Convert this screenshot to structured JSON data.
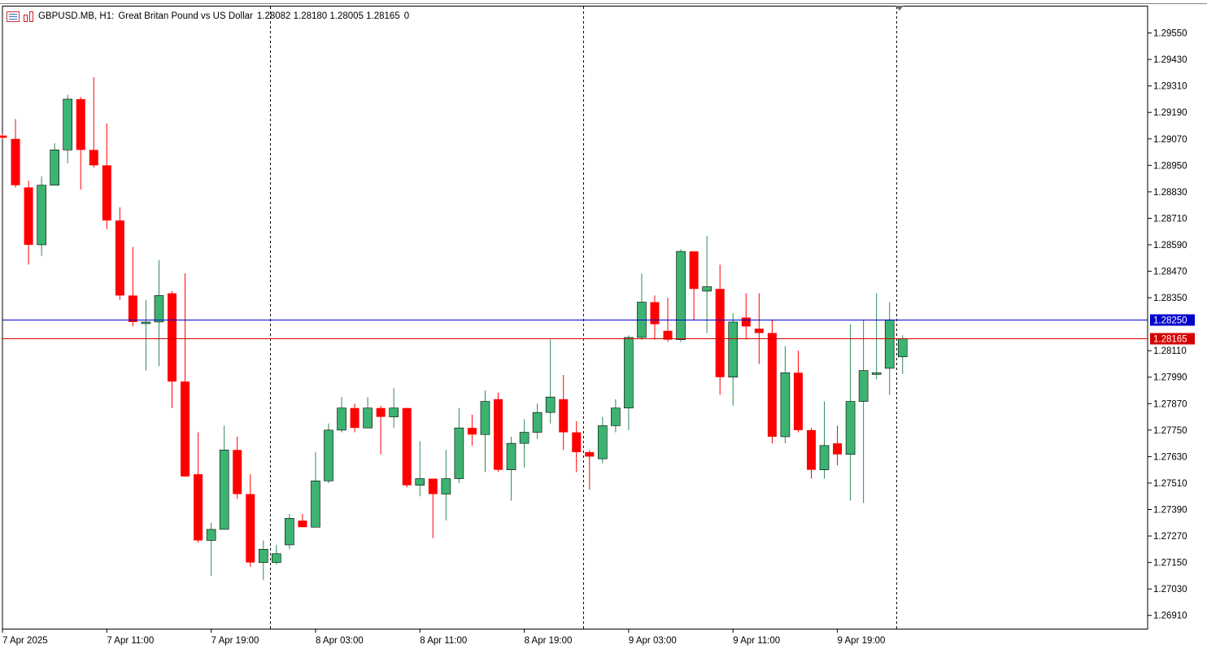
{
  "header": {
    "symbol": "GBPUSD.MB, H1:",
    "description": "Great Britan Pound vs US Dollar",
    "ohlc": "1.28082 1.28180 1.28005 1.28165",
    "volume": "0"
  },
  "icons": [
    "chart-list-icon",
    "chart-bars-icon"
  ],
  "colors": {
    "bull": "#3cb371",
    "bear": "#ff0000",
    "ask_line": "#0000cd",
    "bid_line": "#d40000",
    "grid": "#000000"
  },
  "chart_data": {
    "type": "candlestick",
    "symbol": "GBPUSD.MB",
    "timeframe": "H1",
    "ylim": [
      1.2685,
      1.2967
    ],
    "y_ticks": [
      "1.29550",
      "1.29430",
      "1.29310",
      "1.29190",
      "1.29070",
      "1.28950",
      "1.28830",
      "1.28710",
      "1.28590",
      "1.28470",
      "1.28350",
      "1.28110",
      "1.27990",
      "1.27870",
      "1.27750",
      "1.27630",
      "1.27510",
      "1.27390",
      "1.27270",
      "1.27150",
      "1.27030",
      "1.26910"
    ],
    "x_labels": [
      {
        "label": "7 Apr 2025",
        "bar": 0
      },
      {
        "label": "7 Apr 11:00",
        "bar": 8
      },
      {
        "label": "7 Apr 19:00",
        "bar": 16
      },
      {
        "label": "8 Apr 03:00",
        "bar": 24
      },
      {
        "label": "8 Apr 11:00",
        "bar": 32
      },
      {
        "label": "8 Apr 19:00",
        "bar": 40
      },
      {
        "label": "9 Apr 03:00",
        "bar": 48
      },
      {
        "label": "9 Apr 11:00",
        "bar": 56
      },
      {
        "label": "9 Apr 19:00",
        "bar": 64
      }
    ],
    "day_separators_after_bar": [
      20,
      44,
      68
    ],
    "price_lines": [
      {
        "label": "1.28250",
        "value": 1.2825,
        "color": "#0000cd"
      },
      {
        "label": "1.28165",
        "value": 1.28165,
        "color": "#d40000"
      }
    ],
    "candles": [
      [
        1.29085,
        1.29095,
        1.2907,
        1.29075
      ],
      [
        1.2907,
        1.2916,
        1.2885,
        1.2886
      ],
      [
        1.2885,
        1.2888,
        1.285,
        1.2859
      ],
      [
        1.2859,
        1.289,
        1.2854,
        1.2886
      ],
      [
        1.2886,
        1.2905,
        1.2886,
        1.2902
      ],
      [
        1.2902,
        1.2927,
        1.2896,
        1.2925
      ],
      [
        1.2925,
        1.2926,
        1.2884,
        1.2902
      ],
      [
        1.2902,
        1.2935,
        1.2894,
        1.2895
      ],
      [
        1.2895,
        1.2914,
        1.2866,
        1.287
      ],
      [
        1.287,
        1.2876,
        1.2834,
        1.2836
      ],
      [
        1.2836,
        1.2858,
        1.2822,
        1.2824
      ],
      [
        1.2824,
        1.2834,
        1.2802,
        1.2824
      ],
      [
        1.2824,
        1.2852,
        1.2804,
        1.2836
      ],
      [
        1.2837,
        1.2838,
        1.2785,
        1.2797
      ],
      [
        1.2797,
        1.2846,
        1.2754,
        1.2754
      ],
      [
        1.2755,
        1.2774,
        1.2724,
        1.2725
      ],
      [
        1.2725,
        1.2733,
        1.2709,
        1.273
      ],
      [
        1.273,
        1.2777,
        1.273,
        1.2766
      ],
      [
        1.2766,
        1.2772,
        1.2744,
        1.2746
      ],
      [
        1.2746,
        1.2755,
        1.2713,
        1.2715
      ],
      [
        1.2715,
        1.2725,
        1.2707,
        1.2721
      ],
      [
        1.2715,
        1.2723,
        1.2714,
        1.2719
      ],
      [
        1.2723,
        1.2737,
        1.2721,
        1.2735
      ],
      [
        1.2734,
        1.2737,
        1.2731,
        1.2731
      ],
      [
        1.2731,
        1.2765,
        1.2731,
        1.2752
      ],
      [
        1.2752,
        1.2778,
        1.2751,
        1.2775
      ],
      [
        1.2775,
        1.279,
        1.2774,
        1.2785
      ],
      [
        1.2785,
        1.2787,
        1.2774,
        1.2776
      ],
      [
        1.2776,
        1.279,
        1.2776,
        1.2785
      ],
      [
        1.2785,
        1.2786,
        1.2764,
        1.2781
      ],
      [
        1.2781,
        1.2794,
        1.2776,
        1.2785
      ],
      [
        1.2785,
        1.2785,
        1.2749,
        1.275
      ],
      [
        1.275,
        1.277,
        1.2745,
        1.2753
      ],
      [
        1.2753,
        1.2753,
        1.2726,
        1.2746
      ],
      [
        1.2746,
        1.2766,
        1.2734,
        1.2753
      ],
      [
        1.2753,
        1.2785,
        1.2751,
        1.2776
      ],
      [
        1.2776,
        1.2782,
        1.2768,
        1.2773
      ],
      [
        1.2773,
        1.2793,
        1.2756,
        1.2788
      ],
      [
        1.2789,
        1.2792,
        1.2756,
        1.2757
      ],
      [
        1.2757,
        1.2772,
        1.2743,
        1.2769
      ],
      [
        1.2769,
        1.278,
        1.2758,
        1.2774
      ],
      [
        1.2774,
        1.2787,
        1.2771,
        1.2783
      ],
      [
        1.2783,
        1.2816,
        1.2778,
        1.279
      ],
      [
        1.2789,
        1.28,
        1.2766,
        1.2774
      ],
      [
        1.2774,
        1.2779,
        1.2756,
        1.2765
      ],
      [
        1.2765,
        1.2766,
        1.2748,
        1.2763
      ],
      [
        1.2762,
        1.2781,
        1.276,
        1.2777
      ],
      [
        1.2777,
        1.2789,
        1.2774,
        1.2785
      ],
      [
        1.2785,
        1.2818,
        1.2775,
        1.2817
      ],
      [
        1.2817,
        1.2846,
        1.2816,
        1.2833
      ],
      [
        1.2833,
        1.2836,
        1.2816,
        1.2823
      ],
      [
        1.282,
        1.2835,
        1.2815,
        1.2816
      ],
      [
        1.2816,
        1.2857,
        1.2815,
        1.2856
      ],
      [
        1.2856,
        1.2856,
        1.2825,
        1.2839
      ],
      [
        1.2838,
        1.2863,
        1.2819,
        1.284
      ],
      [
        1.2839,
        1.285,
        1.2791,
        1.2799
      ],
      [
        1.2799,
        1.2828,
        1.2786,
        1.2824
      ],
      [
        1.2826,
        1.2837,
        1.2816,
        1.2822
      ],
      [
        1.2821,
        1.2837,
        1.2805,
        1.2819
      ],
      [
        1.2819,
        1.2825,
        1.2769,
        1.2772
      ],
      [
        1.2772,
        1.2813,
        1.2769,
        1.2801
      ],
      [
        1.2801,
        1.2811,
        1.2774,
        1.2775
      ],
      [
        1.2775,
        1.2776,
        1.2753,
        1.2757
      ],
      [
        1.2757,
        1.2788,
        1.2753,
        1.2768
      ],
      [
        1.2769,
        1.2777,
        1.2759,
        1.2764
      ],
      [
        1.2764,
        1.2823,
        1.2743,
        1.2788
      ],
      [
        1.2788,
        1.2825,
        1.2742,
        1.2802
      ],
      [
        1.2801,
        1.2837,
        1.2798,
        1.2801
      ],
      [
        1.2803,
        1.2833,
        1.2791,
        1.2825
      ],
      [
        1.28082,
        1.2818,
        1.28005,
        1.28165
      ]
    ]
  }
}
